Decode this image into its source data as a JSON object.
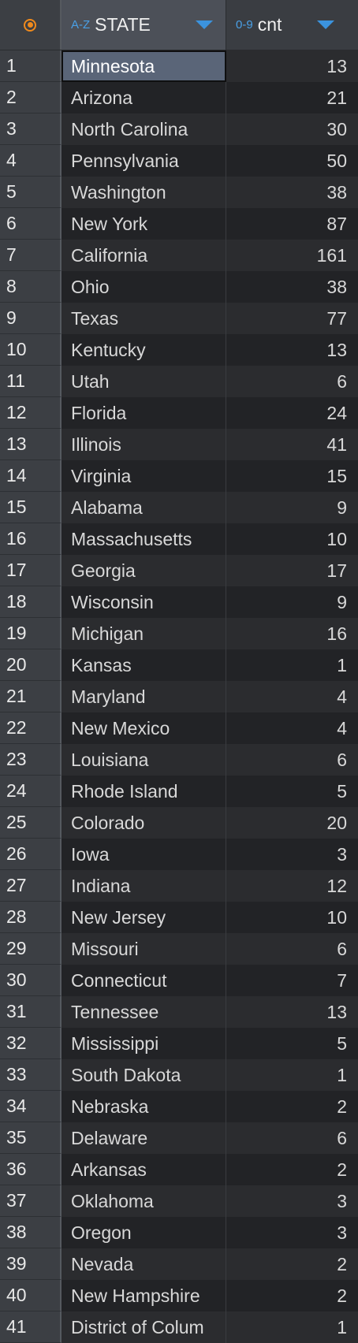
{
  "columns": {
    "state": {
      "type_label": "A-Z",
      "label": "STATE"
    },
    "cnt": {
      "type_label": "0-9",
      "label": "cnt"
    }
  },
  "rows": [
    {
      "n": "1",
      "state": "Minnesota",
      "cnt": "13"
    },
    {
      "n": "2",
      "state": "Arizona",
      "cnt": "21"
    },
    {
      "n": "3",
      "state": "North Carolina",
      "cnt": "30"
    },
    {
      "n": "4",
      "state": "Pennsylvania",
      "cnt": "50"
    },
    {
      "n": "5",
      "state": "Washington",
      "cnt": "38"
    },
    {
      "n": "6",
      "state": "New York",
      "cnt": "87"
    },
    {
      "n": "7",
      "state": "California",
      "cnt": "161"
    },
    {
      "n": "8",
      "state": "Ohio",
      "cnt": "38"
    },
    {
      "n": "9",
      "state": "Texas",
      "cnt": "77"
    },
    {
      "n": "10",
      "state": "Kentucky",
      "cnt": "13"
    },
    {
      "n": "11",
      "state": "Utah",
      "cnt": "6"
    },
    {
      "n": "12",
      "state": "Florida",
      "cnt": "24"
    },
    {
      "n": "13",
      "state": "Illinois",
      "cnt": "41"
    },
    {
      "n": "14",
      "state": "Virginia",
      "cnt": "15"
    },
    {
      "n": "15",
      "state": "Alabama",
      "cnt": "9"
    },
    {
      "n": "16",
      "state": "Massachusetts",
      "cnt": "10"
    },
    {
      "n": "17",
      "state": "Georgia",
      "cnt": "17"
    },
    {
      "n": "18",
      "state": "Wisconsin",
      "cnt": "9"
    },
    {
      "n": "19",
      "state": "Michigan",
      "cnt": "16"
    },
    {
      "n": "20",
      "state": "Kansas",
      "cnt": "1"
    },
    {
      "n": "21",
      "state": "Maryland",
      "cnt": "4"
    },
    {
      "n": "22",
      "state": "New Mexico",
      "cnt": "4"
    },
    {
      "n": "23",
      "state": "Louisiana",
      "cnt": "6"
    },
    {
      "n": "24",
      "state": "Rhode Island",
      "cnt": "5"
    },
    {
      "n": "25",
      "state": "Colorado",
      "cnt": "20"
    },
    {
      "n": "26",
      "state": "Iowa",
      "cnt": "3"
    },
    {
      "n": "27",
      "state": "Indiana",
      "cnt": "12"
    },
    {
      "n": "28",
      "state": "New Jersey",
      "cnt": "10"
    },
    {
      "n": "29",
      "state": "Missouri",
      "cnt": "6"
    },
    {
      "n": "30",
      "state": "Connecticut",
      "cnt": "7"
    },
    {
      "n": "31",
      "state": "Tennessee",
      "cnt": "13"
    },
    {
      "n": "32",
      "state": "Mississippi",
      "cnt": "5"
    },
    {
      "n": "33",
      "state": "South Dakota",
      "cnt": "1"
    },
    {
      "n": "34",
      "state": "Nebraska",
      "cnt": "2"
    },
    {
      "n": "35",
      "state": "Delaware",
      "cnt": "6"
    },
    {
      "n": "36",
      "state": "Arkansas",
      "cnt": "2"
    },
    {
      "n": "37",
      "state": "Oklahoma",
      "cnt": "3"
    },
    {
      "n": "38",
      "state": "Oregon",
      "cnt": "3"
    },
    {
      "n": "39",
      "state": "Nevada",
      "cnt": "2"
    },
    {
      "n": "40",
      "state": "New Hampshire",
      "cnt": "2"
    },
    {
      "n": "41",
      "state": "District of Colum",
      "cnt": "1"
    }
  ],
  "colors": {
    "accent": "#3b93de",
    "row_indicator": "#f08a1c",
    "selected_cell": "#5a6578"
  }
}
